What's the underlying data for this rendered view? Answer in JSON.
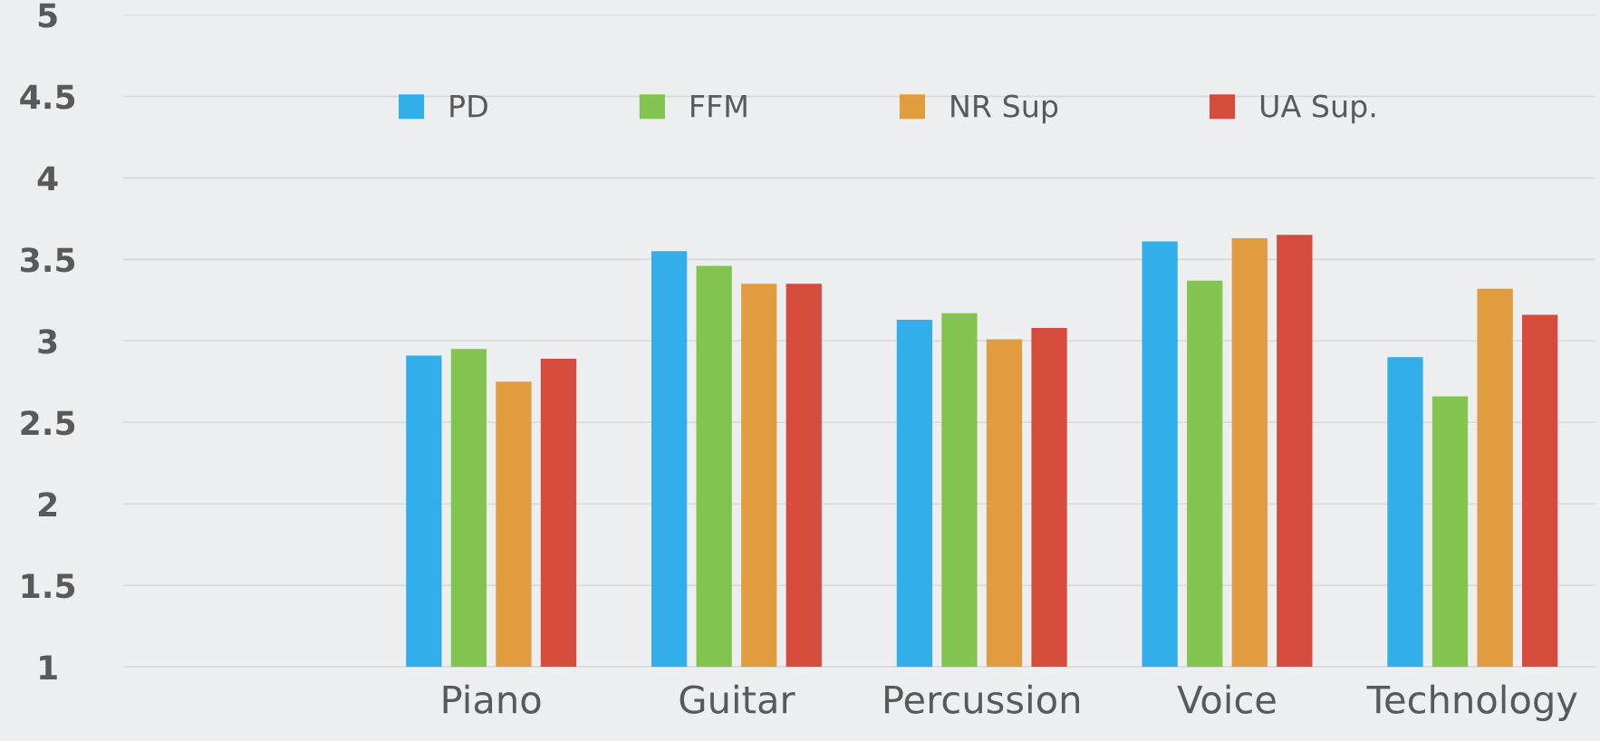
{
  "chart_data": {
    "type": "bar",
    "categories": [
      null,
      "Piano",
      "Guitar",
      "Percussion",
      "Voice",
      "Technology"
    ],
    "series": [
      {
        "name": "PD",
        "color": "#32aeeb",
        "values": [
          null,
          2.91,
          3.55,
          3.13,
          3.61,
          2.9
        ]
      },
      {
        "name": "FFM",
        "color": "#83c350",
        "values": [
          null,
          2.95,
          3.46,
          3.17,
          3.37,
          2.66
        ]
      },
      {
        "name": "NR Sup",
        "color": "#e19c3f",
        "values": [
          null,
          2.75,
          3.35,
          3.01,
          3.63,
          3.32
        ]
      },
      {
        "name": "UA Sup.",
        "color": "#d54b3c",
        "values": [
          null,
          2.89,
          3.35,
          3.08,
          3.65,
          3.16
        ]
      }
    ],
    "ylim": [
      1,
      5
    ],
    "yticks": [
      1,
      1.5,
      2,
      2.5,
      3,
      3.5,
      4,
      4.5,
      5
    ],
    "grid": "y",
    "legend": "top"
  }
}
